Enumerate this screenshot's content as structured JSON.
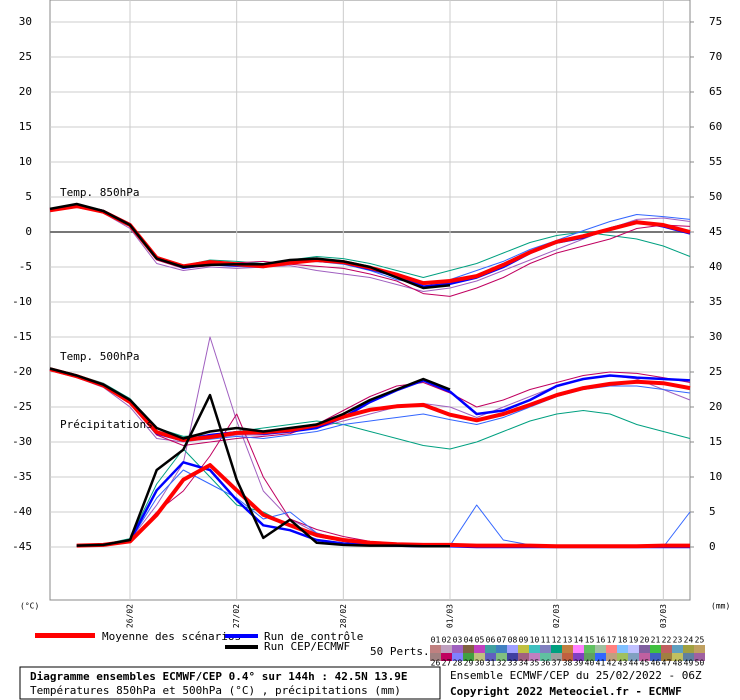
{
  "chart_data": {
    "type": "line",
    "labels": {
      "t850": "Temp. 850hPa",
      "t500": "Temp. 500hPa",
      "precip": "Précipitations"
    },
    "y_unit": "(°C)",
    "y2_unit": "(mm)",
    "xlim": [
      0,
      144
    ],
    "xticks": [
      {
        "value": 18,
        "label": "26/02"
      },
      {
        "value": 42,
        "label": "27/02"
      },
      {
        "value": 66,
        "label": "28/02"
      },
      {
        "value": 90,
        "label": "01/03"
      },
      {
        "value": 114,
        "label": "02/03"
      },
      {
        "value": 138,
        "label": "03/03"
      }
    ],
    "ylim": [
      -52.57,
      33.14
    ],
    "yticks": [
      30,
      25,
      20,
      15,
      10,
      5,
      0,
      -5,
      -10,
      -15,
      -20,
      -25,
      -30,
      -35,
      -40,
      -45
    ],
    "y2lim": [
      -7.57,
      78.14
    ],
    "y2ticks": [
      75,
      70,
      65,
      60,
      55,
      50,
      45,
      40,
      35,
      30,
      25,
      20,
      15,
      10,
      5,
      0
    ],
    "grid": true,
    "zero_line": 0,
    "x": [
      0,
      6,
      12,
      18,
      24,
      30,
      36,
      42,
      48,
      54,
      60,
      66,
      72,
      78,
      84,
      90,
      96,
      102,
      108,
      114,
      120,
      126,
      132,
      138,
      144
    ],
    "series": [
      {
        "name": "Moyenne des scénarios",
        "color": "#ff0000",
        "values_850": [
          3.1,
          3.7,
          2.9,
          1.0,
          -3.7,
          -4.9,
          -4.3,
          -4.6,
          -4.9,
          -4.4,
          -4.0,
          -4.3,
          -5.1,
          -6.1,
          -7.3,
          -7.0,
          -6.3,
          -4.7,
          -2.9,
          -1.4,
          -0.6,
          0.4,
          1.4,
          1.0,
          0.0
        ],
        "values_500": [
          -19.6,
          -20.6,
          -21.9,
          -24.3,
          -28.6,
          -29.7,
          -29.3,
          -28.7,
          -28.6,
          -28.3,
          -27.6,
          -26.4,
          -25.4,
          -24.9,
          -24.7,
          -26.1,
          -26.9,
          -26.0,
          -24.7,
          -23.3,
          -22.3,
          -21.7,
          -21.4,
          -21.6,
          -22.3
        ],
        "precipitation": [
          null,
          0.2,
          0.3,
          0.8,
          4.6,
          9.6,
          11.7,
          8.1,
          4.6,
          3.1,
          1.7,
          1.0,
          0.6,
          0.4,
          0.3,
          0.3,
          0.2,
          0.2,
          0.2,
          0.1,
          0.1,
          0.1,
          0.1,
          0.2,
          0.2
        ]
      },
      {
        "name": "Run de contrôle",
        "color": "#0000ff",
        "values_850": [
          3.2,
          3.8,
          3.0,
          1.1,
          -3.6,
          -5.1,
          -4.6,
          -4.8,
          -4.7,
          -4.3,
          -4.1,
          -4.4,
          -5.3,
          -6.3,
          -7.8,
          -7.4,
          -6.5,
          -5.0,
          -3.0,
          -1.5,
          -0.8,
          0.5,
          1.5,
          0.8,
          -0.2
        ],
        "values_500": [
          -19.6,
          -20.6,
          -21.8,
          -24.2,
          -28.8,
          -29.8,
          -29.0,
          -28.6,
          -28.8,
          -28.5,
          -28.0,
          -26.5,
          -24.3,
          -22.6,
          -21.2,
          -22.8,
          -26.0,
          -25.5,
          -24.0,
          -22.0,
          -21.0,
          -20.5,
          -20.8,
          -21.0,
          -21.2
        ],
        "precipitation": [
          null,
          0.2,
          0.3,
          0.9,
          8.1,
          12.1,
          11.0,
          6.7,
          3.1,
          2.4,
          1.0,
          0.5,
          0.3,
          0.2,
          0.1,
          0.1,
          0.0,
          0.0,
          0.0,
          0.0,
          0.0,
          0.0,
          0.0,
          0.0,
          0.0
        ]
      },
      {
        "name": "Run CEP/ECMWF",
        "color": "#000000",
        "values_850": [
          3.3,
          4.0,
          3.0,
          1.0,
          -3.8,
          -5.0,
          -4.7,
          -4.6,
          -4.6,
          -4.0,
          -3.8,
          -4.2,
          -5.0,
          -6.5,
          -8.0,
          -7.6,
          null,
          null,
          null,
          null,
          null,
          null,
          null,
          null,
          null
        ],
        "values_500": [
          -19.5,
          -20.5,
          -21.8,
          -24.0,
          -28.0,
          -29.5,
          -28.5,
          -28.0,
          -28.5,
          -28.0,
          -27.5,
          -26.0,
          -24.0,
          -22.5,
          -21.0,
          -22.5,
          null,
          null,
          null,
          null,
          null,
          null,
          null,
          null,
          null
        ],
        "precipitation": [
          null,
          0.2,
          0.3,
          1.0,
          11.0,
          13.9,
          21.7,
          9.6,
          1.3,
          3.9,
          0.6,
          0.3,
          0.2,
          0.2,
          0.1,
          0.1,
          null,
          null,
          null,
          null,
          null,
          null,
          null,
          null,
          null
        ]
      }
    ],
    "perturbations": {
      "label": "50 Perts.",
      "members": [
        {
          "name": "01",
          "color": "#c08080"
        },
        {
          "name": "02",
          "color": "#c0a0c0"
        },
        {
          "name": "03",
          "color": "#a060c0",
          "values_850": [
            3.0,
            3.6,
            2.7,
            0.5,
            -4.5,
            -5.5,
            -5.0,
            -5.2,
            -5.0,
            -4.8,
            -5.5,
            -6.0,
            -6.5,
            -7.5,
            -8.5,
            -8.0,
            -7.0,
            -5.5,
            -4.0,
            -2.5,
            -1.0,
            0.5,
            1.8,
            2.0,
            1.5
          ],
          "values_500": [
            -19.8,
            -20.8,
            -22.2,
            -25.0,
            -29.5,
            -30.0,
            -29.5,
            -29.0,
            -29.0,
            -28.5,
            -28.0,
            -27.0,
            -26.0,
            -25.0,
            -24.5,
            -25.0,
            -26.5,
            -25.0,
            -23.5,
            -22.0,
            -21.0,
            -20.5,
            -21.0,
            -22.5,
            -24.0
          ],
          "precipitation": [
            null,
            0.2,
            0.3,
            1.0,
            6.0,
            12.0,
            30.0,
            18.0,
            8.0,
            4.0,
            2.0,
            1.0,
            0.5,
            0.3,
            0.2,
            0.1,
            0.1,
            0.1,
            0.0,
            0.0,
            0.0,
            0.0,
            0.0,
            0.0,
            0.0
          ]
        },
        {
          "name": "04",
          "color": "#806040"
        },
        {
          "name": "05",
          "color": "#c040c0"
        },
        {
          "name": "06",
          "color": "#40a0a0"
        },
        {
          "name": "07",
          "color": "#4080c0"
        },
        {
          "name": "08",
          "color": "#a0a0ff"
        },
        {
          "name": "09",
          "color": "#c0c040"
        },
        {
          "name": "10",
          "color": "#40c0c0"
        },
        {
          "name": "11",
          "color": "#8080c0"
        },
        {
          "name": "12",
          "color": "#00a080",
          "values_850": [
            3.2,
            3.9,
            3.1,
            1.2,
            -3.5,
            -4.8,
            -4.0,
            -4.2,
            -4.5,
            -4.0,
            -3.5,
            -3.8,
            -4.5,
            -5.5,
            -6.5,
            -5.5,
            -4.5,
            -3.0,
            -1.5,
            -0.5,
            0.0,
            -0.5,
            -1.0,
            -2.0,
            -3.5
          ],
          "values_500": [
            -19.5,
            -20.4,
            -21.6,
            -23.8,
            -28.0,
            -29.2,
            -29.0,
            -28.5,
            -28.0,
            -27.5,
            -27.0,
            -27.5,
            -28.5,
            -29.5,
            -30.5,
            -31.0,
            -30.0,
            -28.5,
            -27.0,
            -26.0,
            -25.5,
            -26.0,
            -27.5,
            -28.5,
            -29.5
          ],
          "precipitation": [
            null,
            0.2,
            0.4,
            1.2,
            9.0,
            14.0,
            10.0,
            6.0,
            5.0,
            3.0,
            1.5,
            0.8,
            0.5,
            0.3,
            0.2,
            0.1,
            0.1,
            0.0,
            0.0,
            0.0,
            0.0,
            0.0,
            0.0,
            0.0,
            0.0
          ]
        },
        {
          "name": "13",
          "color": "#c08040"
        },
        {
          "name": "14",
          "color": "#ff80ff"
        },
        {
          "name": "15",
          "color": "#60c060"
        },
        {
          "name": "16",
          "color": "#a0c0a0"
        },
        {
          "name": "17",
          "color": "#ff8080"
        },
        {
          "name": "18",
          "color": "#80c0ff"
        },
        {
          "name": "19",
          "color": "#c0c0ff"
        },
        {
          "name": "20",
          "color": "#8060a0"
        },
        {
          "name": "21",
          "color": "#40c040"
        },
        {
          "name": "22",
          "color": "#c06060"
        },
        {
          "name": "23",
          "color": "#60a0c0"
        },
        {
          "name": "24",
          "color": "#a0a040"
        },
        {
          "name": "25",
          "color": "#c0a060"
        },
        {
          "name": "26",
          "color": "#a08080"
        },
        {
          "name": "27",
          "color": "#c00060",
          "values_850": [
            3.0,
            3.5,
            2.8,
            0.8,
            -4.0,
            -5.2,
            -4.8,
            -4.4,
            -4.2,
            -4.6,
            -4.9,
            -5.2,
            -6.0,
            -7.0,
            -8.8,
            -9.2,
            -8.0,
            -6.5,
            -4.5,
            -3.0,
            -2.0,
            -1.0,
            0.5,
            1.0,
            0.8
          ],
          "values_500": [
            -19.7,
            -20.7,
            -22.0,
            -24.5,
            -29.0,
            -30.5,
            -30.0,
            -29.5,
            -29.2,
            -28.8,
            -27.5,
            -25.5,
            -23.5,
            -22.0,
            -21.5,
            -23.0,
            -25.0,
            -24.0,
            -22.5,
            -21.5,
            -20.5,
            -20.0,
            -20.2,
            -20.8,
            -21.5
          ],
          "precipitation": [
            null,
            0.1,
            0.3,
            0.8,
            5.0,
            8.0,
            13.0,
            19.0,
            10.0,
            4.0,
            2.5,
            1.5,
            0.8,
            0.4,
            0.2,
            0.2,
            0.1,
            0.1,
            0.0,
            0.0,
            0.0,
            0.0,
            0.0,
            0.0,
            0.0
          ]
        },
        {
          "name": "28",
          "color": "#8080ff"
        },
        {
          "name": "29",
          "color": "#40a040"
        },
        {
          "name": "30",
          "color": "#c0c080"
        },
        {
          "name": "31",
          "color": "#6060c0"
        },
        {
          "name": "32",
          "color": "#80c080"
        },
        {
          "name": "33",
          "color": "#4040a0"
        },
        {
          "name": "34",
          "color": "#a06080"
        },
        {
          "name": "35",
          "color": "#c080c0"
        },
        {
          "name": "36",
          "color": "#60c0a0"
        },
        {
          "name": "37",
          "color": "#a0a0a0"
        },
        {
          "name": "38",
          "color": "#c06040"
        },
        {
          "name": "39",
          "color": "#8040c0"
        },
        {
          "name": "40",
          "color": "#60a060"
        },
        {
          "name": "41",
          "color": "#3366ff",
          "values_850": [
            3.3,
            3.8,
            3.0,
            1.0,
            -3.9,
            -4.9,
            -4.5,
            -4.9,
            -5.1,
            -4.4,
            -4.2,
            -4.6,
            -5.5,
            -6.8,
            -7.5,
            -6.8,
            -5.5,
            -4.2,
            -2.5,
            -1.2,
            0.2,
            1.5,
            2.5,
            2.2,
            1.8
          ],
          "values_500": [
            -19.6,
            -20.5,
            -21.9,
            -24.4,
            -28.5,
            -29.8,
            -29.6,
            -29.2,
            -29.5,
            -29.0,
            -28.5,
            -27.5,
            -27.0,
            -26.5,
            -26.0,
            -26.8,
            -27.5,
            -26.5,
            -25.0,
            -23.5,
            -22.5,
            -22.0,
            -22.0,
            -22.5,
            -23.0
          ],
          "precipitation": [
            null,
            0.2,
            0.3,
            0.9,
            7.0,
            11.0,
            9.0,
            7.0,
            4.0,
            5.0,
            2.0,
            1.0,
            0.6,
            0.3,
            0.3,
            0.2,
            6.0,
            1.0,
            0.3,
            0.1,
            0.0,
            0.0,
            0.0,
            0.0,
            5.0
          ]
        },
        {
          "name": "42",
          "color": "#c0a080"
        },
        {
          "name": "43",
          "color": "#a0c060"
        },
        {
          "name": "44",
          "color": "#80a0c0"
        },
        {
          "name": "45",
          "color": "#c060a0"
        },
        {
          "name": "46",
          "color": "#4060c0"
        },
        {
          "name": "47",
          "color": "#a08040"
        },
        {
          "name": "48",
          "color": "#c0c060"
        },
        {
          "name": "49",
          "color": "#6080a0"
        },
        {
          "name": "50",
          "color": "#a060a0"
        }
      ]
    }
  },
  "footer": {
    "title": "Diagramme ensembles ECMWF/CEP 0.4° sur 144h : 42.5N 13.9E",
    "subtitle": "Températures 850hPa et 500hPa (°C) , précipitations (mm)",
    "run": "Ensemble ECMWF/CEP du 25/02/2022 - 06Z",
    "copyright": "Copyright 2022 Meteociel.fr - ECMWF"
  }
}
